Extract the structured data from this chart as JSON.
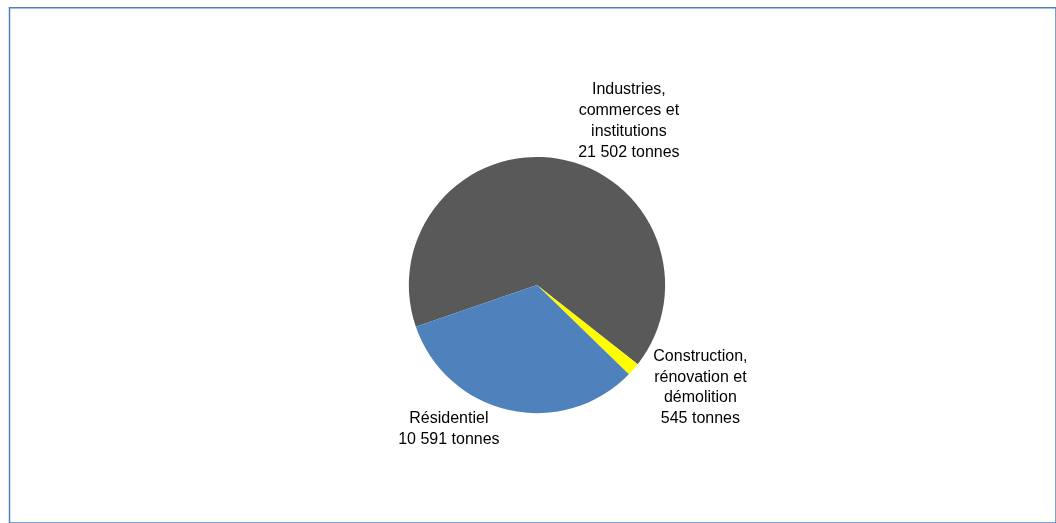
{
  "chart_data": {
    "type": "pie",
    "categories": [
      "Industries, commerces et institutions",
      "Construction, rénovation et démolition",
      "Résidentiel"
    ],
    "values": [
      21502,
      545,
      10591
    ],
    "value_labels": [
      "21 502 tonnes",
      "545 tonnes",
      "10 591 tonnes"
    ],
    "colors": [
      "#595959",
      "#ffff00",
      "#4f81bd"
    ],
    "legend": false
  }
}
